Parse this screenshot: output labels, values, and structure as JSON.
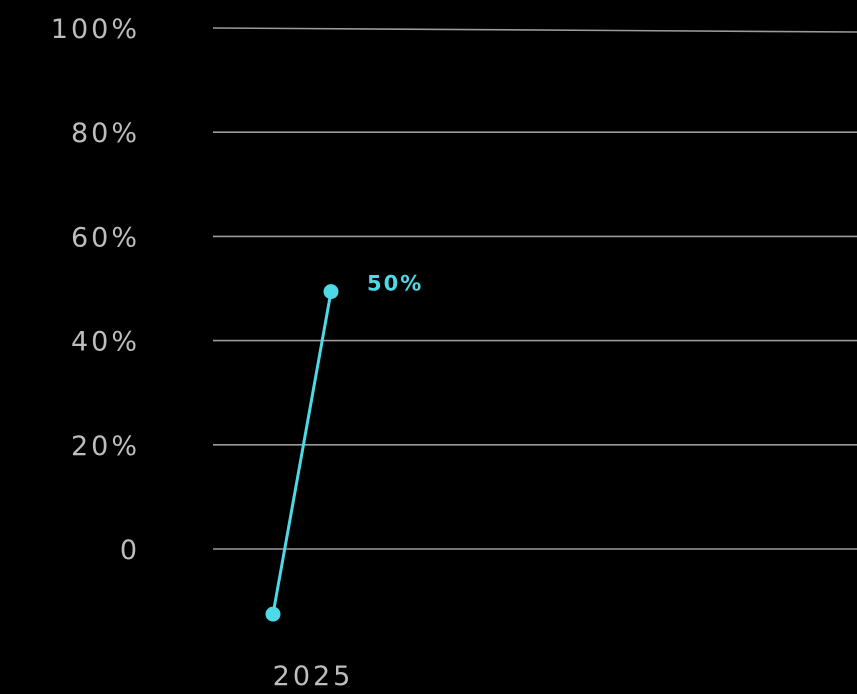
{
  "chart_data": {
    "type": "line",
    "title": "",
    "xlabel": "",
    "ylabel": "",
    "ylim": [
      0,
      100
    ],
    "y_ticks": [
      "0",
      "20%",
      "40%",
      "60%",
      "80%",
      "100%"
    ],
    "y_tick_values": [
      0,
      20,
      40,
      60,
      80,
      100
    ],
    "x_ticks": [
      "2025"
    ],
    "grid": true,
    "legend": "none",
    "series": [
      {
        "color": "#4dd9e6",
        "points": [
          {
            "x": "2025",
            "y": -12.5,
            "label": ""
          },
          {
            "x": "2025",
            "y": 49.4,
            "label": "50%"
          }
        ]
      }
    ],
    "colors": {
      "background": "#000000",
      "grid": "#9a9a9a",
      "tick_text": "#bdbdbd",
      "series": "#4dd9e6"
    }
  }
}
